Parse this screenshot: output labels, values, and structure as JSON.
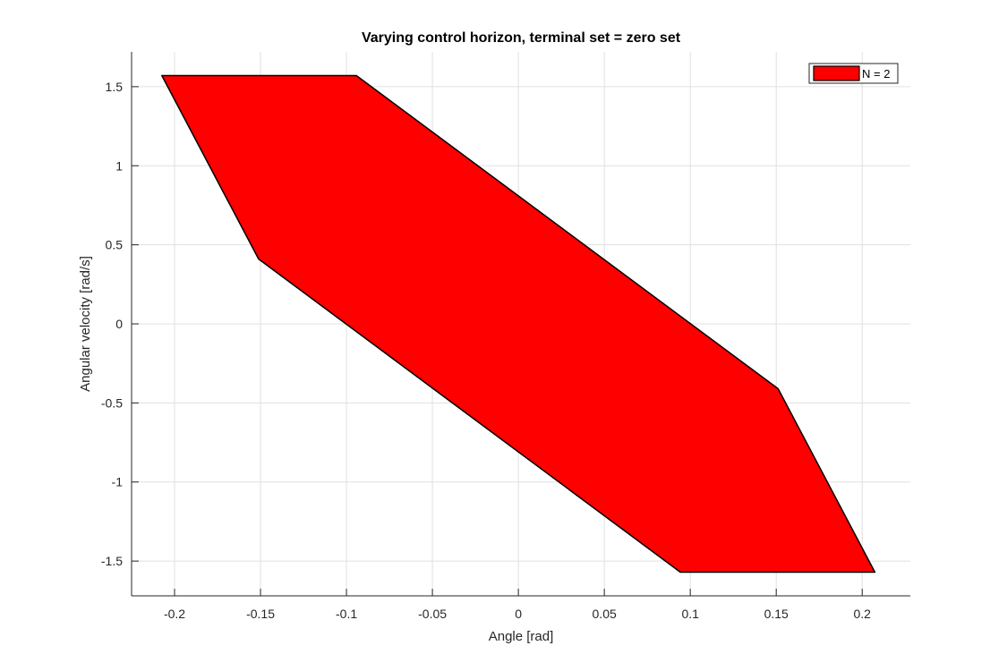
{
  "chart_data": {
    "type": "area",
    "title": "Varying control horizon,  terminal set = zero set",
    "xlabel": "Angle [rad]",
    "ylabel": "Angular velocity [rad/s]",
    "xlim": [
      -0.225,
      0.228
    ],
    "ylim": [
      -1.72,
      1.72
    ],
    "xticks": [
      -0.2,
      -0.15,
      -0.1,
      -0.05,
      0,
      0.05,
      0.1,
      0.15,
      0.2
    ],
    "xtick_labels": [
      "-0.2",
      "-0.15",
      "-0.1",
      "-0.05",
      "0",
      "0.05",
      "0.1",
      "0.15",
      "0.2"
    ],
    "yticks": [
      1.5,
      1,
      0.5,
      0,
      -0.5,
      -1,
      -1.5
    ],
    "ytick_labels": [
      "1.5",
      "1",
      "0.5",
      "0",
      "-0.5",
      "-1",
      "-1.5"
    ],
    "grid": true,
    "legend_position": "top-right",
    "series": [
      {
        "name": "N = 2",
        "color": "#ff0000",
        "edge_color": "#000000",
        "polygon": [
          {
            "x": -0.2074,
            "y": 1.57
          },
          {
            "x": -0.0942,
            "y": 1.57
          },
          {
            "x": 0.1511,
            "y": -0.41
          },
          {
            "x": 0.2074,
            "y": -1.57
          },
          {
            "x": 0.0942,
            "y": -1.57
          },
          {
            "x": -0.1511,
            "y": 0.41
          }
        ]
      }
    ]
  }
}
